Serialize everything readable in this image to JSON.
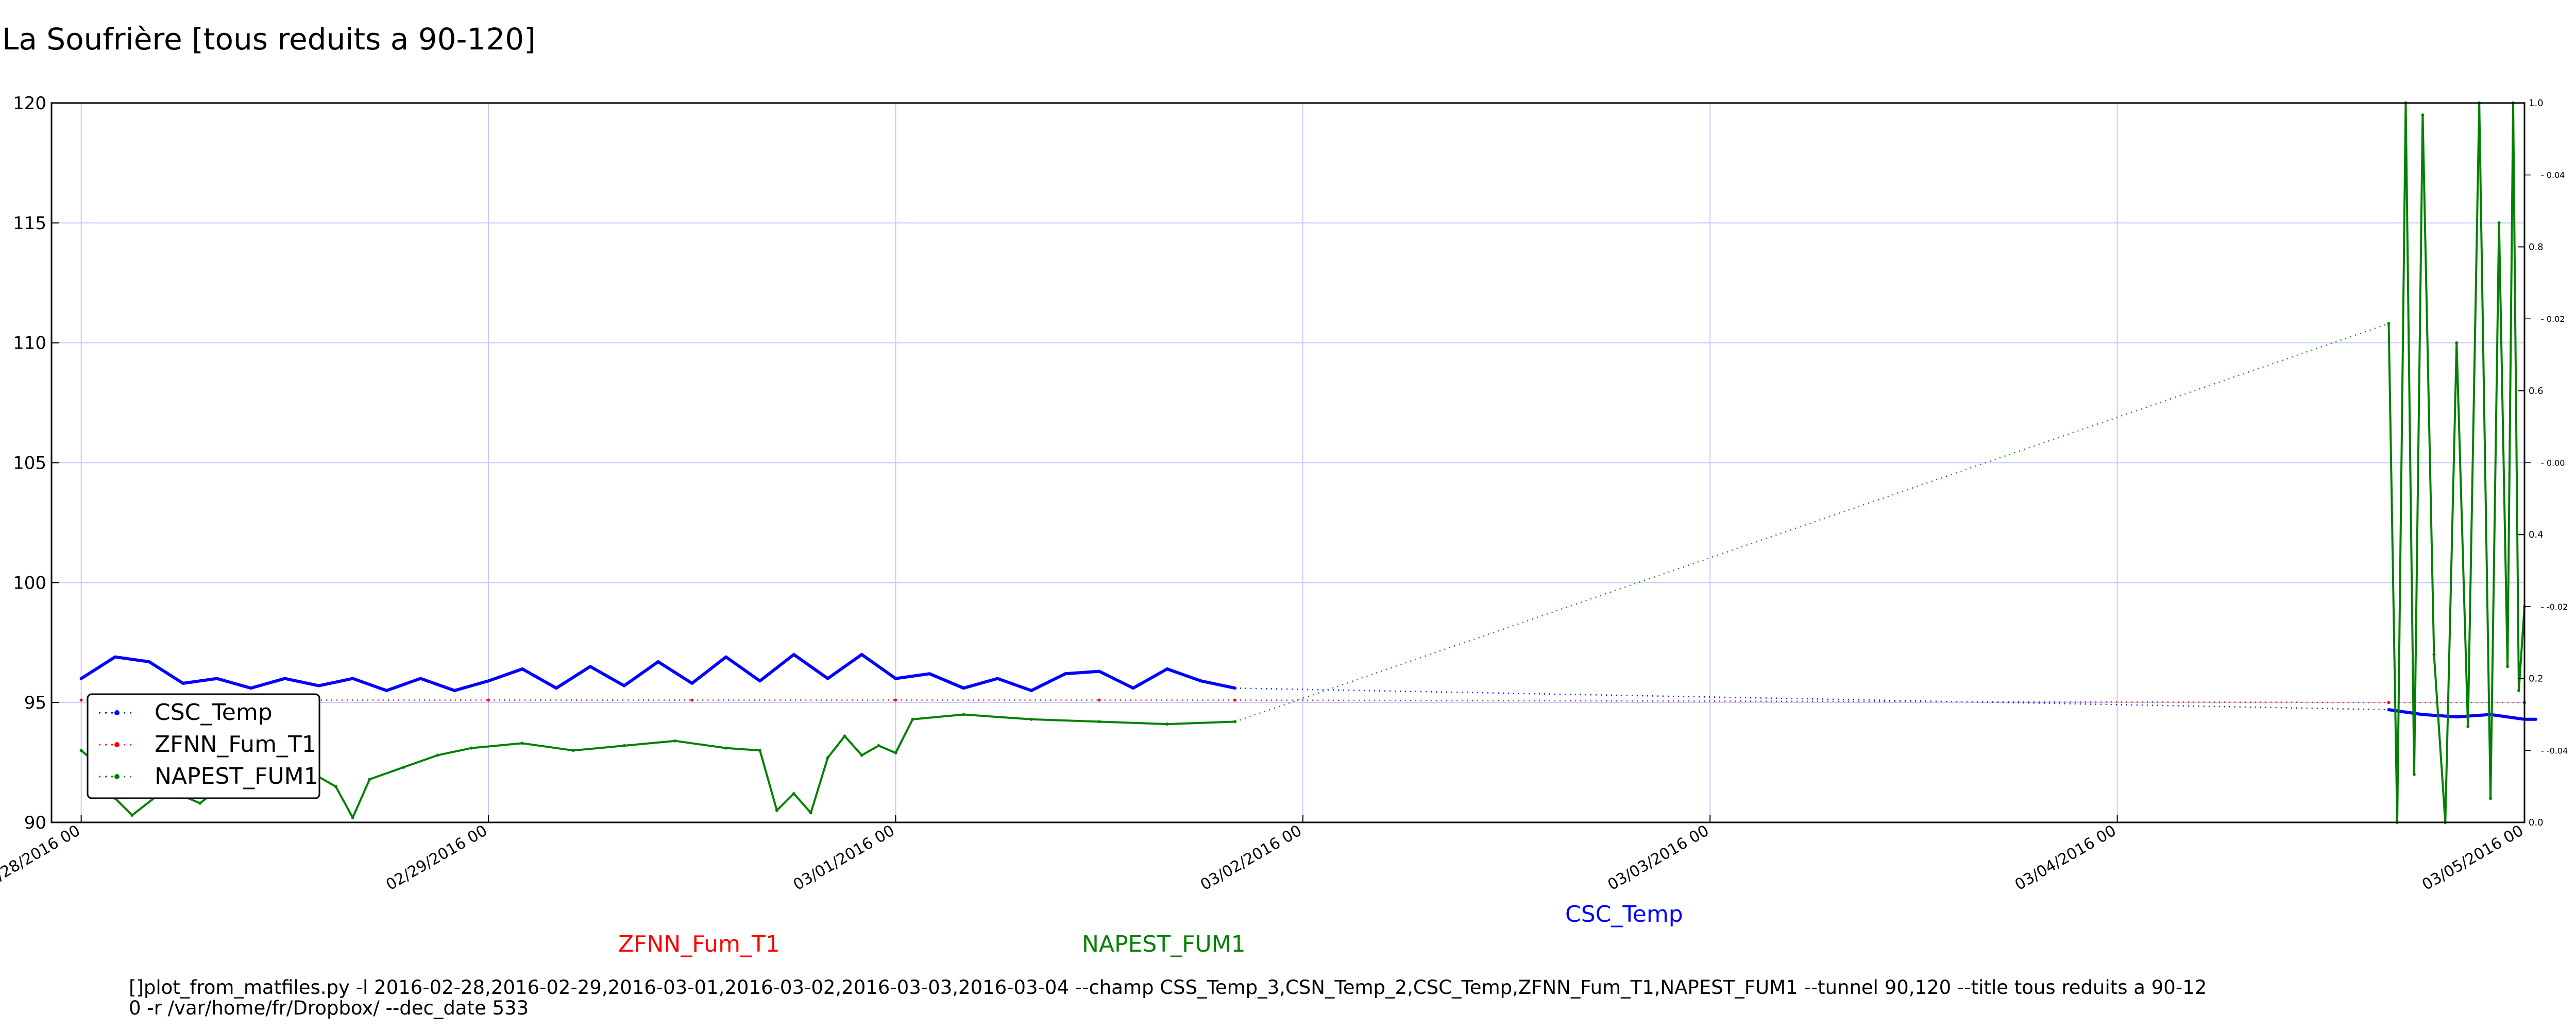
{
  "chart_data": {
    "type": "line",
    "title": "La Soufrière [tous reduits a 90-120]",
    "xlabel": "",
    "ylabel": "",
    "x_ticks": [
      "02/28/2016 00",
      "02/29/2016 00",
      "03/01/2016 00",
      "03/02/2016 00",
      "03/03/2016 00",
      "03/04/2016 00",
      "03/05/2016 00"
    ],
    "xlim": [
      "2016-02-27T22:15",
      "2016-03-05T00:00"
    ],
    "ylim": [
      90,
      120
    ],
    "y_ticks": [
      90,
      95,
      100,
      105,
      110,
      115,
      120
    ],
    "y2_ticks_outer": [
      "0.0",
      "0.2",
      "0.4",
      "0.6",
      "0.8",
      "1.0"
    ],
    "y2_ticks_inner": [
      "-0.04",
      "-0.02",
      "0.00",
      "0.02",
      "0.04"
    ],
    "grid": true,
    "legend_position": "lower-left",
    "series": [
      {
        "name": "CSC_Temp",
        "color": "#0000ff",
        "points": [
          [
            "2016-02-28T00:00",
            96.0
          ],
          [
            "2016-02-28T02:00",
            96.9
          ],
          [
            "2016-02-28T04:00",
            96.7
          ],
          [
            "2016-02-28T06:00",
            95.8
          ],
          [
            "2016-02-28T08:00",
            96.0
          ],
          [
            "2016-02-28T10:00",
            95.6
          ],
          [
            "2016-02-28T12:00",
            96.0
          ],
          [
            "2016-02-28T14:00",
            95.7
          ],
          [
            "2016-02-28T16:00",
            96.0
          ],
          [
            "2016-02-28T18:00",
            95.5
          ],
          [
            "2016-02-28T20:00",
            96.0
          ],
          [
            "2016-02-28T22:00",
            95.5
          ],
          [
            "2016-02-29T00:00",
            95.9
          ],
          [
            "2016-02-29T02:00",
            96.4
          ],
          [
            "2016-02-29T04:00",
            95.6
          ],
          [
            "2016-02-29T06:00",
            96.5
          ],
          [
            "2016-02-29T08:00",
            95.7
          ],
          [
            "2016-02-29T10:00",
            96.7
          ],
          [
            "2016-02-29T12:00",
            95.8
          ],
          [
            "2016-02-29T14:00",
            96.9
          ],
          [
            "2016-02-29T16:00",
            95.9
          ],
          [
            "2016-02-29T18:00",
            97.0
          ],
          [
            "2016-02-29T20:00",
            96.0
          ],
          [
            "2016-02-29T22:00",
            97.0
          ],
          [
            "2016-03-01T00:00",
            96.0
          ],
          [
            "2016-03-01T02:00",
            96.2
          ],
          [
            "2016-03-01T04:00",
            95.6
          ],
          [
            "2016-03-01T06:00",
            96.0
          ],
          [
            "2016-03-01T08:00",
            95.5
          ],
          [
            "2016-03-01T10:00",
            96.2
          ],
          [
            "2016-03-01T12:00",
            96.3
          ],
          [
            "2016-03-01T14:00",
            95.6
          ],
          [
            "2016-03-01T16:00",
            96.4
          ],
          [
            "2016-03-01T18:00",
            95.9
          ],
          [
            "2016-03-01T20:00",
            95.6
          ],
          [
            "2016-03-04T16:00",
            94.7
          ],
          [
            "2016-03-04T18:00",
            94.5
          ],
          [
            "2016-03-04T20:00",
            94.4
          ],
          [
            "2016-03-04T22:00",
            94.5
          ],
          [
            "2016-03-05T00:00",
            94.3
          ],
          [
            "2016-03-05T00:40",
            94.3
          ]
        ]
      },
      {
        "name": "ZFNN_Fum_T1",
        "color": "#ff0000",
        "points": [
          [
            "2016-02-28T00:00",
            95.1
          ],
          [
            "2016-02-28T12:00",
            95.1
          ],
          [
            "2016-02-29T00:00",
            95.1
          ],
          [
            "2016-02-29T12:00",
            95.1
          ],
          [
            "2016-03-01T00:00",
            95.1
          ],
          [
            "2016-03-01T12:00",
            95.1
          ],
          [
            "2016-03-01T20:00",
            95.1
          ],
          [
            "2016-03-04T16:00",
            95.0
          ],
          [
            "2016-03-05T00:00",
            95.0
          ]
        ]
      },
      {
        "name": "NAPEST_FUM1",
        "color": "#008000",
        "points": [
          [
            "2016-02-28T00:00",
            93.0
          ],
          [
            "2016-02-28T01:00",
            92.4
          ],
          [
            "2016-02-28T02:00",
            91.0
          ],
          [
            "2016-02-28T03:00",
            90.3
          ],
          [
            "2016-02-28T05:00",
            91.4
          ],
          [
            "2016-02-28T07:00",
            90.8
          ],
          [
            "2016-02-28T09:00",
            91.9
          ],
          [
            "2016-02-28T11:00",
            91.2
          ],
          [
            "2016-02-28T13:00",
            92.3
          ],
          [
            "2016-02-28T15:00",
            91.5
          ],
          [
            "2016-02-28T16:00",
            90.2
          ],
          [
            "2016-02-28T17:00",
            91.8
          ],
          [
            "2016-02-28T19:00",
            92.3
          ],
          [
            "2016-02-28T21:00",
            92.8
          ],
          [
            "2016-02-28T23:00",
            93.1
          ],
          [
            "2016-02-29T02:00",
            93.3
          ],
          [
            "2016-02-29T05:00",
            93.0
          ],
          [
            "2016-02-29T08:00",
            93.2
          ],
          [
            "2016-02-29T11:00",
            93.4
          ],
          [
            "2016-02-29T14:00",
            93.1
          ],
          [
            "2016-02-29T16:00",
            93.0
          ],
          [
            "2016-02-29T17:00",
            90.5
          ],
          [
            "2016-02-29T18:00",
            91.2
          ],
          [
            "2016-02-29T19:00",
            90.4
          ],
          [
            "2016-02-29T20:00",
            92.7
          ],
          [
            "2016-02-29T21:00",
            93.6
          ],
          [
            "2016-02-29T22:00",
            92.8
          ],
          [
            "2016-02-29T23:00",
            93.2
          ],
          [
            "2016-03-01T00:00",
            92.9
          ],
          [
            "2016-03-01T01:00",
            94.3
          ],
          [
            "2016-03-01T04:00",
            94.5
          ],
          [
            "2016-03-01T08:00",
            94.3
          ],
          [
            "2016-03-01T12:00",
            94.2
          ],
          [
            "2016-03-01T16:00",
            94.1
          ],
          [
            "2016-03-01T20:00",
            94.2
          ],
          [
            "2016-03-04T16:00",
            110.8
          ],
          [
            "2016-03-04T16:30",
            90.0
          ],
          [
            "2016-03-04T17:00",
            120.0
          ],
          [
            "2016-03-04T17:30",
            92.0
          ],
          [
            "2016-03-04T18:00",
            119.5
          ],
          [
            "2016-03-04T18:40",
            97.0
          ],
          [
            "2016-03-04T19:20",
            90.0
          ],
          [
            "2016-03-04T20:00",
            110.0
          ],
          [
            "2016-03-04T20:40",
            94.0
          ],
          [
            "2016-03-04T21:20",
            120.0
          ],
          [
            "2016-03-04T22:00",
            91.0
          ],
          [
            "2016-03-04T22:30",
            115.0
          ],
          [
            "2016-03-04T23:00",
            96.5
          ],
          [
            "2016-03-04T23:20",
            120.0
          ],
          [
            "2016-03-04T23:40",
            95.5
          ],
          [
            "2016-03-05T00:00",
            99.0
          ]
        ]
      }
    ],
    "colored_labels": [
      {
        "text": "ZFNN_Fum_T1",
        "color": "#ff0000"
      },
      {
        "text": "NAPEST_FUM1",
        "color": "#008000"
      },
      {
        "text": "CSC_Temp",
        "color": "#0000ff"
      }
    ],
    "command_line": [
      "[]plot_from_matfiles.py -l 2016-02-28,2016-02-29,2016-03-01,2016-03-02,2016-03-03,2016-03-04 --champ CSS_Temp_3,CSN_Temp_2,CSC_Temp,ZFNN_Fum_T1,NAPEST_FUM1 --tunnel 90,120 --title tous reduits a 90-12",
      "0 -r /var/home/fr/Dropbox/ --dec_date 533"
    ]
  }
}
